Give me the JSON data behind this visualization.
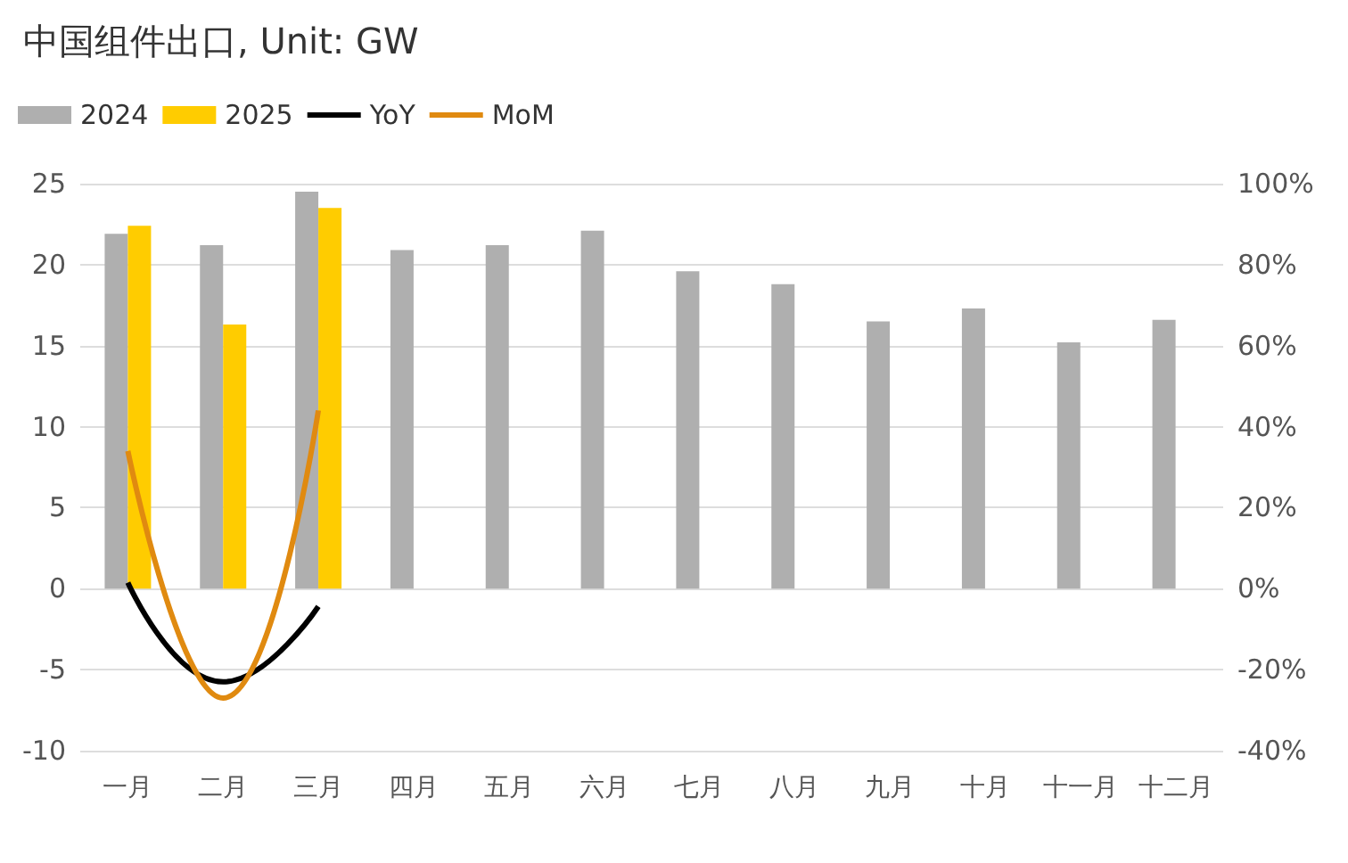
{
  "chart_data": {
    "type": "bar",
    "title": "中国组件出口, Unit: GW",
    "categories": [
      "一月",
      "二月",
      "三月",
      "四月",
      "五月",
      "六月",
      "七月",
      "八月",
      "九月",
      "十月",
      "十一月",
      "十二月"
    ],
    "series": [
      {
        "name": "2024",
        "color": "#afafaf",
        "values": [
          21.9,
          21.2,
          24.5,
          20.9,
          21.2,
          22.1,
          19.6,
          18.8,
          16.5,
          17.3,
          15.2,
          16.6
        ]
      },
      {
        "name": "2025",
        "color": "#ffcc00",
        "values": [
          22.4,
          16.3,
          23.5,
          null,
          null,
          null,
          null,
          null,
          null,
          null,
          null,
          null
        ]
      },
      {
        "name": "YoY",
        "type": "line",
        "axis": "y2",
        "color": "#000000",
        "values": [
          1.5,
          -23,
          -4.4,
          null,
          null,
          null,
          null,
          null,
          null,
          null,
          null,
          null
        ]
      },
      {
        "name": "MoM",
        "type": "line",
        "axis": "y2",
        "color": "#e08a10",
        "values": [
          34,
          -27,
          44,
          null,
          null,
          null,
          null,
          null,
          null,
          null,
          null,
          null
        ]
      }
    ],
    "ylim": [
      -10,
      25
    ],
    "yticks": [
      -10,
      -5,
      0,
      5,
      10,
      15,
      20,
      25
    ],
    "y2lim": [
      -40,
      100
    ],
    "y2ticks": [
      {
        "value": -40,
        "label": "-40%"
      },
      {
        "value": -20,
        "label": "-20%"
      },
      {
        "value": 0,
        "label": "0%"
      },
      {
        "value": 20,
        "label": "20%"
      },
      {
        "value": 40,
        "label": "40%"
      },
      {
        "value": 60,
        "label": "60%"
      },
      {
        "value": 80,
        "label": "80%"
      },
      {
        "value": 100,
        "label": "100%"
      }
    ],
    "grid": "y",
    "legend": "top left",
    "marker": "none"
  }
}
